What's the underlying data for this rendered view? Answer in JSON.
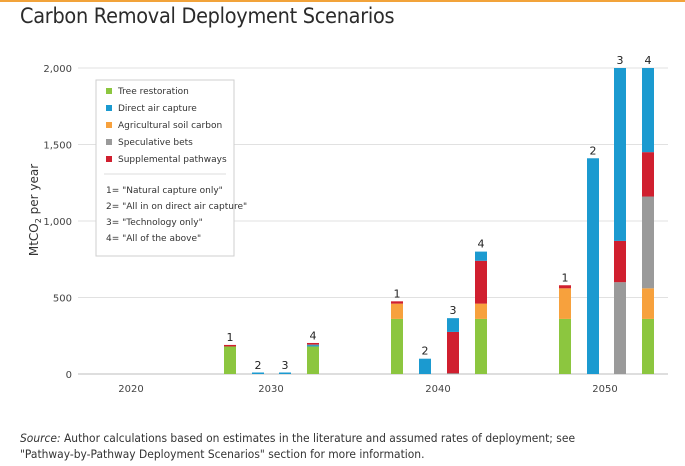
{
  "title": "Carbon Removal Deployment Scenarios",
  "source": {
    "prefix": "Source:",
    "text": "Author calculations based on estimates in the literature and assumed rates of deployment; see \"Pathway-by-Pathway Deployment Scenarios\" section for more information."
  },
  "colors": {
    "Tree restoration": "#8cc63f",
    "Direct air capture": "#1b9ad0",
    "Agricultural soil carbon": "#f7a13d",
    "Speculative bets": "#9a9a9a",
    "Supplemental pathways": "#d01f2f"
  },
  "chart_data": {
    "type": "bar",
    "stacked": true,
    "title": "Carbon Removal Deployment Scenarios",
    "ylabel": "MtCO2 per year",
    "ylabel_main": "MtCO",
    "ylabel_sub": "2",
    "ylabel_rest": " per year",
    "xlabel": "",
    "ylim": [
      0,
      2000
    ],
    "yticks": [
      0,
      500,
      1000,
      1500,
      2000
    ],
    "ytick_labels": [
      "0",
      "500",
      "1,000",
      "1,500",
      "2,000"
    ],
    "grid": true,
    "legend_position": "top-left",
    "legend": [
      "Tree restoration",
      "Direct air capture",
      "Agricultural soil carbon",
      "Speculative bets",
      "Supplemental pathways"
    ],
    "scenario_notes": [
      "1= \"Natural capture only\"",
      "2= \"All in on direct air capture\"",
      "3= \"Technology only\"",
      "4= \"All of the above\""
    ],
    "year_labels": [
      "2020",
      "2030",
      "2040",
      "2050"
    ],
    "bars": [
      {
        "year": "2030",
        "scenario": "1",
        "values": {
          "Tree restoration": 180,
          "Supplemental pathways": 10
        }
      },
      {
        "year": "2030",
        "scenario": "2",
        "values": {
          "Direct air capture": 8
        }
      },
      {
        "year": "2030",
        "scenario": "3",
        "values": {
          "Direct air capture": 8
        }
      },
      {
        "year": "2030",
        "scenario": "4",
        "values": {
          "Tree restoration": 180,
          "Direct air capture": 8,
          "Speculative bets": 5,
          "Supplemental pathways": 5
        }
      },
      {
        "year": "2040",
        "scenario": "1",
        "values": {
          "Tree restoration": 360,
          "Agricultural soil carbon": 100,
          "Supplemental pathways": 15
        }
      },
      {
        "year": "2040",
        "scenario": "2",
        "values": {
          "Direct air capture": 100
        }
      },
      {
        "year": "2040",
        "scenario": "3",
        "values": {
          "Speculative bets": 5,
          "Supplemental pathways": 270,
          "Direct air capture": 90
        }
      },
      {
        "year": "2040",
        "scenario": "4",
        "values": {
          "Tree restoration": 360,
          "Agricultural soil carbon": 100,
          "Supplemental pathways": 280,
          "Direct air capture": 60
        }
      },
      {
        "year": "2050",
        "scenario": "1",
        "values": {
          "Tree restoration": 360,
          "Agricultural soil carbon": 200,
          "Supplemental pathways": 20
        }
      },
      {
        "year": "2050",
        "scenario": "2",
        "values": {
          "Direct air capture": 1410
        }
      },
      {
        "year": "2050",
        "scenario": "3",
        "values": {
          "Speculative bets": 600,
          "Supplemental pathways": 270,
          "Direct air capture": 1130
        }
      },
      {
        "year": "2050",
        "scenario": "4",
        "values": {
          "Tree restoration": 360,
          "Agricultural soil carbon": 200,
          "Speculative bets": 600,
          "Supplemental pathways": 290,
          "Direct air capture": 550
        }
      }
    ]
  }
}
